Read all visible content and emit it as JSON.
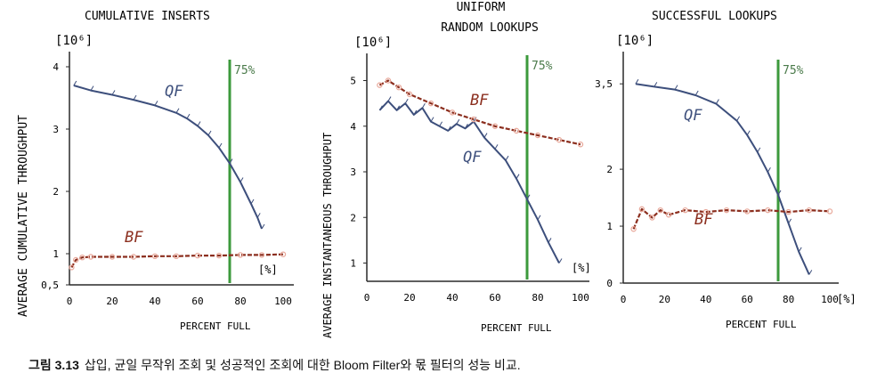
{
  "figure_caption": {
    "number": "그림 3.13",
    "text": "삽입, 균일 무작위 조회 및 성공적인 조회에 대한 Bloom Filter와 몫 필터의 성능 비교."
  },
  "colors": {
    "qf": "#3d4f7c",
    "bf": "#8b2e1e",
    "bf_marker": "#e8a89a",
    "threshold": "#3c9a3c",
    "axis": "#2a2a2a"
  },
  "chart_data": [
    {
      "type": "line",
      "title": "CUMULATIVE INSERTS",
      "ylabel": "AVERAGE CUMULATIVE THROUGHPUT",
      "yunit": "[10⁶]",
      "xlabel": "PERCENT FULL",
      "xunit": "[%]",
      "xlim": [
        0,
        100
      ],
      "ylim": [
        0.5,
        4
      ],
      "xticks": [
        "0",
        "20",
        "40",
        "60",
        "80",
        "100"
      ],
      "yticks": [
        "0,5",
        "1",
        "2",
        "3",
        "4"
      ],
      "threshold": {
        "x": 75,
        "label": "75%"
      },
      "series": [
        {
          "name": "QF",
          "x": [
            2,
            10,
            20,
            30,
            40,
            50,
            55,
            60,
            65,
            70,
            75,
            80,
            85,
            88,
            90
          ],
          "values": [
            3.7,
            3.62,
            3.55,
            3.47,
            3.38,
            3.26,
            3.17,
            3.05,
            2.9,
            2.7,
            2.45,
            2.15,
            1.8,
            1.58,
            1.4
          ]
        },
        {
          "name": "BF",
          "x": [
            1,
            3,
            6,
            10,
            20,
            30,
            40,
            50,
            60,
            70,
            80,
            90,
            100
          ],
          "values": [
            0.78,
            0.9,
            0.94,
            0.95,
            0.95,
            0.95,
            0.96,
            0.96,
            0.97,
            0.97,
            0.98,
            0.98,
            0.99
          ]
        }
      ]
    },
    {
      "type": "line",
      "title": "UNIFORM",
      "subtitle": "RANDOM LOOKUPS",
      "ylabel": "AVERAGE INSTANTANEOUS THROUGHPUT",
      "yunit": "[10⁶]",
      "xlabel": "PERCENT FULL",
      "xunit": "[%]",
      "xlim": [
        0,
        100
      ],
      "ylim": [
        0.6,
        5.4
      ],
      "xticks": [
        "0",
        "20",
        "40",
        "60",
        "80",
        "100"
      ],
      "yticks": [
        "1",
        "2",
        "3",
        "4",
        "5"
      ],
      "threshold": {
        "x": 75,
        "label": "75%"
      },
      "series": [
        {
          "name": "QF",
          "x": [
            6,
            10,
            14,
            18,
            22,
            26,
            30,
            34,
            38,
            42,
            46,
            50,
            55,
            60,
            65,
            70,
            75,
            80,
            85,
            90
          ],
          "values": [
            4.35,
            4.55,
            4.35,
            4.5,
            4.25,
            4.4,
            4.1,
            4.0,
            3.9,
            4.05,
            3.95,
            4.1,
            3.75,
            3.5,
            3.25,
            2.85,
            2.4,
            1.95,
            1.45,
            1.0
          ]
        },
        {
          "name": "BF",
          "x": [
            6,
            10,
            15,
            20,
            30,
            40,
            50,
            60,
            70,
            80,
            90,
            100
          ],
          "values": [
            4.9,
            5.0,
            4.85,
            4.7,
            4.5,
            4.3,
            4.15,
            4.0,
            3.9,
            3.8,
            3.7,
            3.6
          ]
        }
      ]
    },
    {
      "type": "line",
      "title": "SUCCESSFUL LOOKUPS",
      "yunit": "[10⁶]",
      "xlabel": "PERCENT FULL",
      "xunit": "[%]",
      "xlim": [
        0,
        100
      ],
      "ylim": [
        0,
        3.8
      ],
      "xticks": [
        "0",
        "20",
        "40",
        "60",
        "80",
        "100"
      ],
      "yticks": [
        "0",
        "1",
        "2",
        "3,5"
      ],
      "threshold": {
        "x": 75,
        "label": "75%"
      },
      "series": [
        {
          "name": "QF",
          "x": [
            6,
            15,
            25,
            35,
            45,
            55,
            60,
            65,
            70,
            75,
            80,
            85,
            90
          ],
          "values": [
            3.5,
            3.45,
            3.4,
            3.3,
            3.15,
            2.85,
            2.6,
            2.3,
            1.95,
            1.55,
            1.05,
            0.55,
            0.15
          ]
        },
        {
          "name": "BF",
          "x": [
            5,
            9,
            14,
            18,
            22,
            30,
            40,
            50,
            60,
            70,
            80,
            90,
            100
          ],
          "values": [
            0.95,
            1.3,
            1.15,
            1.28,
            1.2,
            1.28,
            1.25,
            1.28,
            1.26,
            1.28,
            1.25,
            1.28,
            1.26
          ]
        }
      ]
    }
  ]
}
